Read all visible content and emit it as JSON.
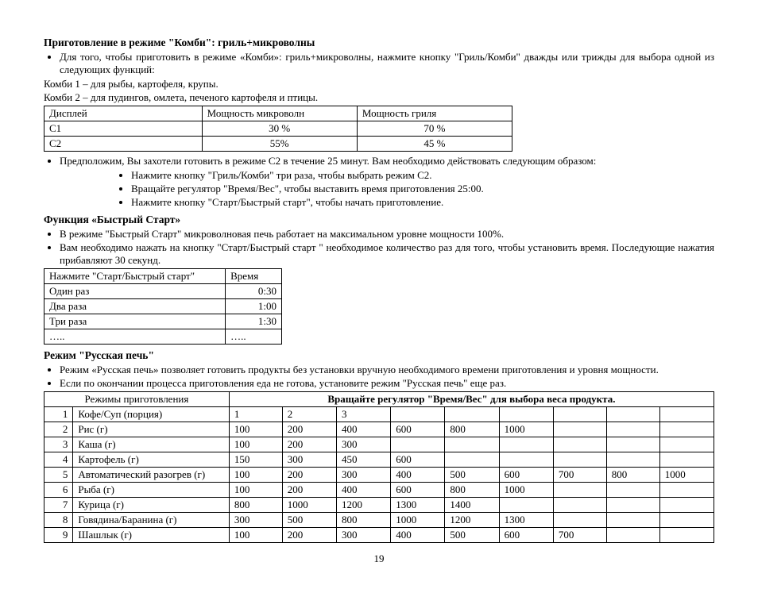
{
  "sec1": {
    "title": "Приготовление в режиме \"Комби\": гриль+микроволны",
    "bullets": [
      "Для того, чтобы приготовить в режиме «Комби»: гриль+микроволны, нажмите кнопку \"Гриль/Комби\" дважды или трижды для выбора одной из следующих функций:"
    ],
    "lines": [
      "Комби 1 – для рыбы, картофеля, крупы.",
      "Комби 2 – для пудингов, омлета, печеного картофеля и птицы."
    ],
    "table": {
      "headers": [
        "Дисплей",
        "Мощность микроволн",
        "Мощность гриля"
      ],
      "rows": [
        [
          "C1",
          "30 %",
          "70 %"
        ],
        [
          "C2",
          "55%",
          "45 %"
        ]
      ]
    },
    "after_bullet": "Предположим, Вы захотели готовить в режиме С2 в течение 25 минут. Вам необходимо действовать следующим образом:",
    "inner": [
      "Нажмите кнопку \"Гриль/Комби\" три раза, чтобы выбрать режим С2.",
      "Вращайте регулятор \"Время/Вес\", чтобы  выставить время приготовления 25:00.",
      "Нажмите кнопку \"Старт/Быстрый старт\", чтобы начать приготовление."
    ]
  },
  "sec2": {
    "title": "Функция «Быстрый Старт»",
    "bullets": [
      "В режиме \"Быстрый Старт\" микроволновая печь работает на максимальном уровне мощности 100%.",
      "Вам необходимо нажать на кнопку \"Старт/Быстрый старт \" необходимое количество раз для того, чтобы установить время. Последующие нажатия прибавляют 30 секунд."
    ],
    "table": {
      "headers": [
        "Нажмите \"Старт/Быстрый старт\"",
        "Время"
      ],
      "rows": [
        [
          "Один раз",
          "0:30"
        ],
        [
          "Два раза",
          "1:00"
        ],
        [
          "Три раза",
          "1:30"
        ],
        [
          "…..",
          "….."
        ]
      ]
    }
  },
  "sec3": {
    "title": "Режим \"Русская печь\"",
    "bullets": [
      "Режим «Русская печь» позволяет готовить продукты без установки вручную необходимого времени приготовления и уровня мощности.",
      "Если по окончании процесса приготовления еда не готова, установите режим \"Русская печь\" еще раз."
    ],
    "table": {
      "col1": "Режимы приготовления",
      "span_header": "Вращайте регулятор \"Время/Вес\" для выбора веса продукта.",
      "rows": [
        {
          "n": "1",
          "name": "Кофе/Суп (порция)",
          "v": [
            "1",
            "2",
            "3",
            "",
            "",
            "",
            "",
            "",
            ""
          ]
        },
        {
          "n": "2",
          "name": "Рис (г)",
          "v": [
            "100",
            "200",
            "400",
            "600",
            "800",
            "1000",
            "",
            "",
            ""
          ]
        },
        {
          "n": "3",
          "name": "Каша (г)",
          "v": [
            "100",
            "200",
            "300",
            "",
            "",
            "",
            "",
            "",
            ""
          ]
        },
        {
          "n": "4",
          "name": "Картофель (г)",
          "v": [
            "150",
            "300",
            "450",
            "600",
            "",
            "",
            "",
            "",
            ""
          ]
        },
        {
          "n": "5",
          "name": "Автоматический разогрев (г)",
          "v": [
            "100",
            "200",
            "300",
            "400",
            "500",
            "600",
            "700",
            "800",
            "1000"
          ]
        },
        {
          "n": "6",
          "name": "Рыба (г)",
          "v": [
            "100",
            "200",
            "400",
            "600",
            "800",
            "1000",
            "",
            "",
            ""
          ]
        },
        {
          "n": "7",
          "name": "Курица (г)",
          "v": [
            "800",
            "1000",
            "1200",
            "1300",
            "1400",
            "",
            "",
            "",
            ""
          ]
        },
        {
          "n": "8",
          "name": "Говядина/Баранина (г)",
          "v": [
            "300",
            "500",
            "800",
            "1000",
            "1200",
            "1300",
            "",
            "",
            ""
          ]
        },
        {
          "n": "9",
          "name": "Шашлык (г)",
          "v": [
            "100",
            "200",
            "300",
            "400",
            "500",
            "600",
            "700",
            "",
            ""
          ]
        }
      ]
    }
  },
  "page_number": "19"
}
